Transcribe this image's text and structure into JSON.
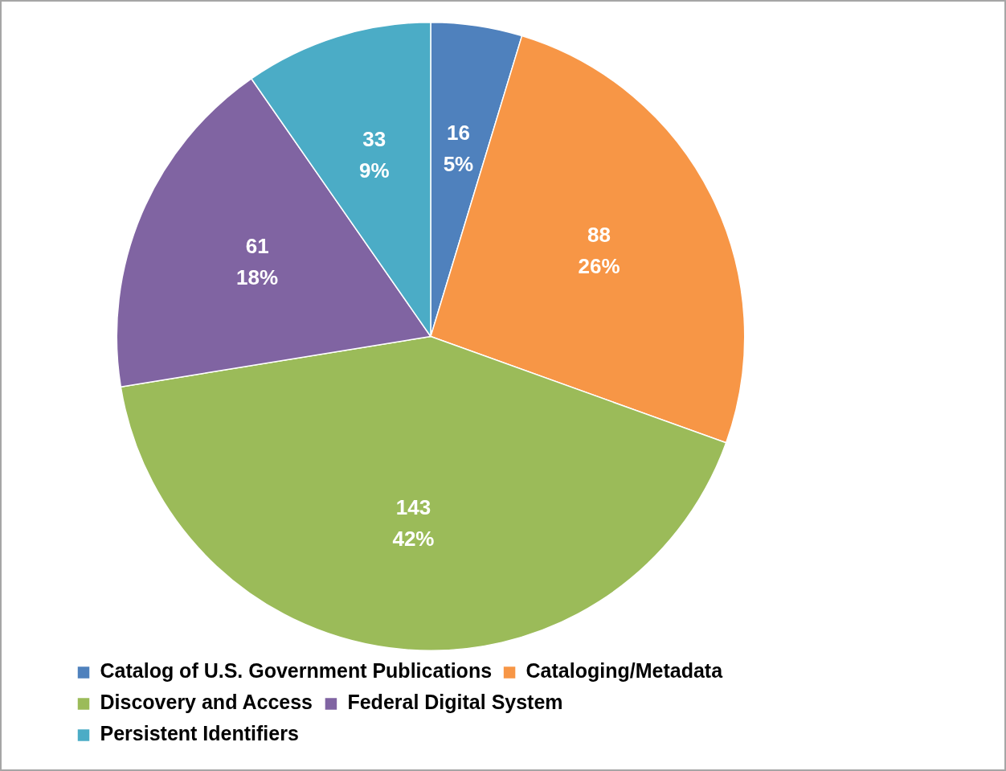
{
  "chart_data": {
    "type": "pie",
    "categories": [
      "Catalog of U.S. Government Publications",
      "Cataloging/Metadata",
      "Discovery and Access",
      "Federal Digital System",
      "Persistent Identifiers"
    ],
    "values": [
      16,
      88,
      143,
      61,
      33
    ],
    "colors": [
      "#4f81bd",
      "#f79646",
      "#9bbb59",
      "#8064a2",
      "#4bacc6"
    ],
    "value_labels": [
      "16\n5%",
      "88\n26%",
      "143\n42%",
      "61\n18%",
      "33\n9%"
    ],
    "legend": "bottom"
  }
}
